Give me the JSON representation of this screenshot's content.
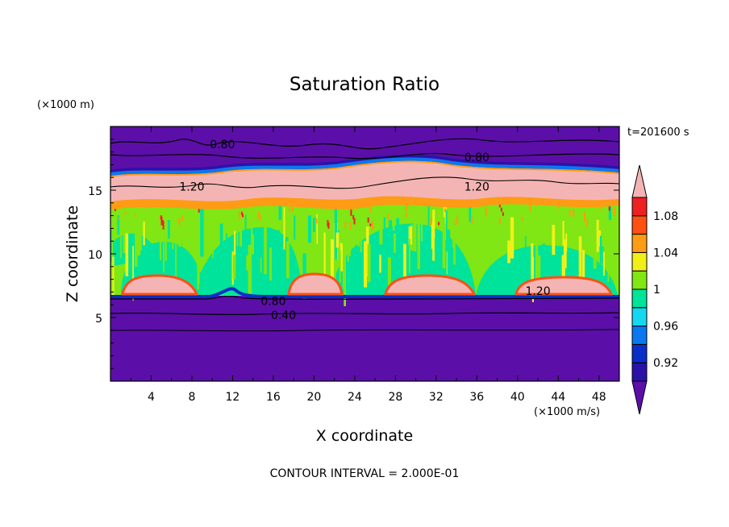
{
  "chart_data": {
    "type": "heatmap",
    "title": "Saturation Ratio",
    "xlabel": "X coordinate",
    "ylabel": "Z coordinate",
    "x_unit": "(×1000 m/s)",
    "y_unit": "(×1000 m)",
    "time_label": "t=201600 s",
    "footer": "CONTOUR INTERVAL = 2.000E-01",
    "xlim": [
      0,
      50
    ],
    "ylim": [
      0,
      20
    ],
    "x_ticks": [
      4,
      8,
      12,
      16,
      20,
      24,
      28,
      32,
      36,
      40,
      44,
      48
    ],
    "y_ticks": [
      5,
      10,
      15
    ],
    "colorbar": {
      "ticks": [
        "1.08",
        "1.04",
        "1",
        "0.96",
        "0.92"
      ],
      "levels": [
        0.9,
        0.92,
        0.94,
        0.96,
        0.98,
        1.0,
        1.02,
        1.04,
        1.06,
        1.08,
        1.1
      ],
      "colors": [
        "#5b0fa8",
        "#2a12a8",
        "#0a2ec8",
        "#0a78f0",
        "#14d8f0",
        "#00e39a",
        "#80e614",
        "#f0f018",
        "#ff9b14",
        "#ff5014",
        "#ee2020",
        "#f5b4b4"
      ]
    },
    "contour_labels": [
      {
        "text": "0.80",
        "x": 11,
        "z": 18.6
      },
      {
        "text": "0.80",
        "x": 36,
        "z": 17.6
      },
      {
        "text": "1.20",
        "x": 8,
        "z": 15.3
      },
      {
        "text": "1.20",
        "x": 36,
        "z": 15.3
      },
      {
        "text": "1.20",
        "x": 42,
        "z": 7.1
      },
      {
        "text": "0.80",
        "x": 16,
        "z": 6.3
      },
      {
        "text": "0.40",
        "x": 17,
        "z": 5.2
      }
    ],
    "regions": [
      {
        "name": "upper dry layer",
        "z_range": [
          16.5,
          20
        ],
        "value": 0.8
      },
      {
        "name": "supersaturated band",
        "z_range": [
          14.5,
          16.5
        ],
        "value": 1.2
      },
      {
        "name": "near-saturation layer",
        "z_range": [
          6.8,
          14.5
        ],
        "value": 1.0
      },
      {
        "name": "lower supersaturated pockets",
        "z_range": [
          6.8,
          7.6
        ],
        "value": 1.2
      },
      {
        "name": "lower dry layer",
        "z_range": [
          0,
          6.8
        ],
        "value": 0.4
      }
    ]
  }
}
